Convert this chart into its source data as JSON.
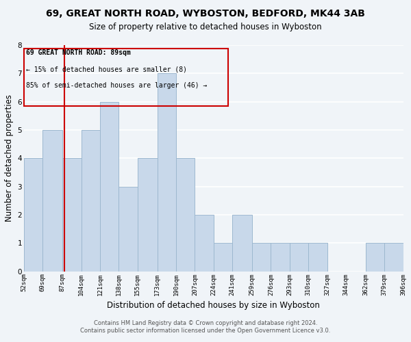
{
  "title": "69, GREAT NORTH ROAD, WYBOSTON, BEDFORD, MK44 3AB",
  "subtitle": "Size of property relative to detached houses in Wyboston",
  "xlabel": "Distribution of detached houses by size in Wyboston",
  "ylabel": "Number of detached properties",
  "bin_edges": [
    52,
    69,
    87,
    104,
    121,
    138,
    155,
    173,
    190,
    207,
    224,
    241,
    259,
    276,
    293,
    310,
    327,
    344,
    362,
    379,
    396
  ],
  "bar_heights": [
    4,
    5,
    4,
    5,
    6,
    3,
    4,
    7,
    4,
    2,
    1,
    2,
    1,
    1,
    1,
    1,
    0,
    0,
    1,
    1
  ],
  "bar_color": "#c8d8ea",
  "bar_edgecolor": "#9db8cf",
  "property_line_x": 89,
  "property_line_color": "#cc0000",
  "annotation_line1": "69 GREAT NORTH ROAD: 89sqm",
  "annotation_line2": "← 15% of detached houses are smaller (8)",
  "annotation_line3": "85% of semi-detached houses are larger (46) →",
  "annotation_box_color": "#cc0000",
  "ylim": [
    0,
    8
  ],
  "yticks": [
    0,
    1,
    2,
    3,
    4,
    5,
    6,
    7,
    8
  ],
  "tick_labels": [
    "52sqm",
    "69sqm",
    "87sqm",
    "104sqm",
    "121sqm",
    "138sqm",
    "155sqm",
    "173sqm",
    "190sqm",
    "207sqm",
    "224sqm",
    "241sqm",
    "259sqm",
    "276sqm",
    "293sqm",
    "310sqm",
    "327sqm",
    "344sqm",
    "362sqm",
    "379sqm",
    "396sqm"
  ],
  "footer_line1": "Contains HM Land Registry data © Crown copyright and database right 2024.",
  "footer_line2": "Contains public sector information licensed under the Open Government Licence v3.0.",
  "background_color": "#f0f4f8",
  "grid_color": "#ffffff",
  "title_fontsize": 10,
  "subtitle_fontsize": 8.5,
  "axis_label_fontsize": 8.5,
  "tick_fontsize": 6.5,
  "footer_fontsize": 6.0
}
